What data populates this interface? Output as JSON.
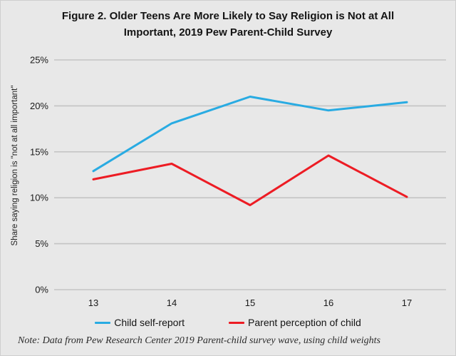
{
  "note": "Note: Data from Pew Research Center 2019 Parent-child survey wave, using child weights",
  "colors": {
    "background": "#e8e8e8",
    "gridline": "#c4c4c4",
    "child_line": "#29abe2",
    "parent_line": "#ed1c24",
    "text": "#1a1a1a"
  },
  "chart_data": {
    "type": "line",
    "title": "Figure 2. Older Teens Are More Likely to Say Religion is Not at All Important, 2019 Pew Parent-Child Survey",
    "xlabel": "",
    "ylabel": "Share saying religion is \"not at all important\"",
    "categories": [
      "13",
      "14",
      "15",
      "16",
      "17"
    ],
    "series": [
      {
        "name": "Child self-report",
        "color": "#29abe2",
        "values": [
          12.9,
          18.1,
          21.0,
          19.5,
          20.4
        ]
      },
      {
        "name": "Parent perception of child",
        "color": "#ed1c24",
        "values": [
          12.0,
          13.7,
          9.2,
          14.6,
          10.1
        ]
      }
    ],
    "ylim": [
      0,
      25
    ],
    "yticks": [
      0,
      5,
      10,
      15,
      20,
      25
    ],
    "ytick_labels": [
      "0%",
      "5%",
      "10%",
      "15%",
      "20%",
      "25%"
    ],
    "grid": true,
    "legend_position": "bottom"
  }
}
